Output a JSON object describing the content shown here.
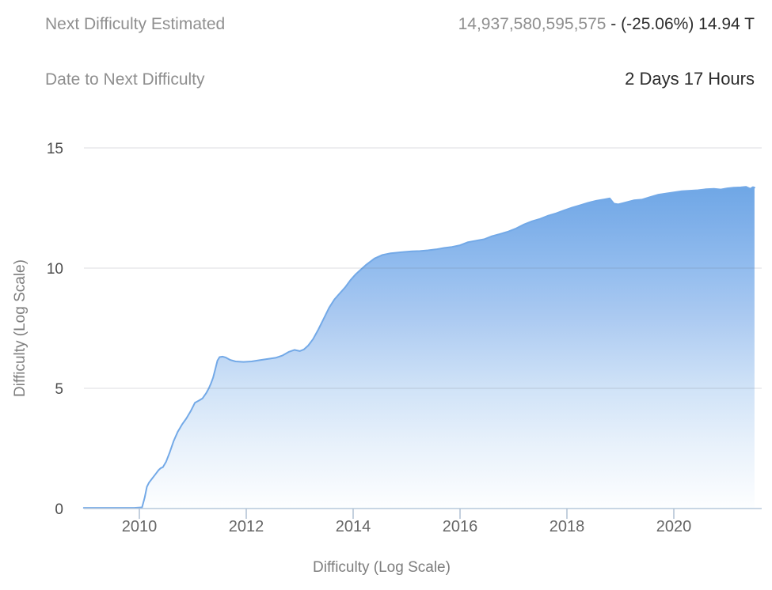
{
  "header": {
    "rows": [
      {
        "label": "Next Difficulty Estimated",
        "value_muted": "14,937,580,595,575",
        "value_strong": " - (-25.06%) 14.94 T"
      },
      {
        "label": "Date to Next Difficulty",
        "value": "2 Days 17 Hours"
      }
    ]
  },
  "chart_data": {
    "type": "area",
    "title": "",
    "xlabel": "Difficulty (Log Scale)",
    "ylabel": "Difficulty (Log Scale)",
    "ylim": [
      0,
      15
    ],
    "yticks": [
      0,
      5,
      10,
      15
    ],
    "xticks": [
      2010,
      2012,
      2014,
      2016,
      2018,
      2020
    ],
    "xlim": [
      2008.96,
      2021.51
    ],
    "grid": "horizontal",
    "legend": "none",
    "colors": {
      "line": "#73a9e7",
      "fill_top": "#6fa7e6",
      "fill_bottom": "#fdfeff",
      "grid": "rgba(95,103,115,0.22)",
      "axis_line": "#b7c9dc",
      "tick_mark": "#b0c0d2",
      "y_tick_label": "#4d4d4d",
      "x_tick_label": "#666666",
      "axis_title": "#7d7d7d"
    },
    "series": [
      {
        "name": "Difficulty (Log Scale)",
        "points": [
          [
            2008.96,
            0.03
          ],
          [
            2009.3,
            0.03
          ],
          [
            2009.6,
            0.03
          ],
          [
            2009.9,
            0.03
          ],
          [
            2010.05,
            0.05
          ],
          [
            2010.1,
            0.45
          ],
          [
            2010.14,
            0.9
          ],
          [
            2010.18,
            1.08
          ],
          [
            2010.24,
            1.25
          ],
          [
            2010.3,
            1.42
          ],
          [
            2010.36,
            1.6
          ],
          [
            2010.4,
            1.68
          ],
          [
            2010.44,
            1.72
          ],
          [
            2010.5,
            1.95
          ],
          [
            2010.57,
            2.35
          ],
          [
            2010.64,
            2.8
          ],
          [
            2010.72,
            3.2
          ],
          [
            2010.8,
            3.5
          ],
          [
            2010.88,
            3.75
          ],
          [
            2010.96,
            4.05
          ],
          [
            2011.04,
            4.4
          ],
          [
            2011.12,
            4.5
          ],
          [
            2011.18,
            4.58
          ],
          [
            2011.25,
            4.8
          ],
          [
            2011.3,
            5.0
          ],
          [
            2011.34,
            5.2
          ],
          [
            2011.38,
            5.45
          ],
          [
            2011.42,
            5.8
          ],
          [
            2011.46,
            6.15
          ],
          [
            2011.5,
            6.3
          ],
          [
            2011.56,
            6.32
          ],
          [
            2011.62,
            6.28
          ],
          [
            2011.7,
            6.18
          ],
          [
            2011.8,
            6.12
          ],
          [
            2011.95,
            6.1
          ],
          [
            2012.1,
            6.12
          ],
          [
            2012.25,
            6.17
          ],
          [
            2012.4,
            6.22
          ],
          [
            2012.55,
            6.27
          ],
          [
            2012.68,
            6.37
          ],
          [
            2012.8,
            6.52
          ],
          [
            2012.9,
            6.6
          ],
          [
            2013.0,
            6.55
          ],
          [
            2013.08,
            6.62
          ],
          [
            2013.16,
            6.78
          ],
          [
            2013.25,
            7.05
          ],
          [
            2013.35,
            7.45
          ],
          [
            2013.45,
            7.9
          ],
          [
            2013.55,
            8.35
          ],
          [
            2013.65,
            8.7
          ],
          [
            2013.75,
            8.95
          ],
          [
            2013.85,
            9.2
          ],
          [
            2013.95,
            9.5
          ],
          [
            2014.05,
            9.75
          ],
          [
            2014.15,
            9.95
          ],
          [
            2014.25,
            10.15
          ],
          [
            2014.4,
            10.4
          ],
          [
            2014.55,
            10.55
          ],
          [
            2014.7,
            10.62
          ],
          [
            2014.9,
            10.66
          ],
          [
            2015.1,
            10.7
          ],
          [
            2015.25,
            10.71
          ],
          [
            2015.4,
            10.74
          ],
          [
            2015.55,
            10.78
          ],
          [
            2015.7,
            10.84
          ],
          [
            2015.85,
            10.88
          ],
          [
            2016.0,
            10.95
          ],
          [
            2016.15,
            11.08
          ],
          [
            2016.3,
            11.14
          ],
          [
            2016.45,
            11.2
          ],
          [
            2016.6,
            11.33
          ],
          [
            2016.75,
            11.42
          ],
          [
            2016.9,
            11.52
          ],
          [
            2017.05,
            11.65
          ],
          [
            2017.2,
            11.82
          ],
          [
            2017.35,
            11.95
          ],
          [
            2017.5,
            12.05
          ],
          [
            2017.65,
            12.18
          ],
          [
            2017.8,
            12.28
          ],
          [
            2017.95,
            12.4
          ],
          [
            2018.1,
            12.52
          ],
          [
            2018.25,
            12.62
          ],
          [
            2018.4,
            12.72
          ],
          [
            2018.55,
            12.8
          ],
          [
            2018.7,
            12.86
          ],
          [
            2018.8,
            12.9
          ],
          [
            2018.88,
            12.68
          ],
          [
            2018.96,
            12.65
          ],
          [
            2019.05,
            12.7
          ],
          [
            2019.15,
            12.76
          ],
          [
            2019.25,
            12.82
          ],
          [
            2019.4,
            12.85
          ],
          [
            2019.55,
            12.95
          ],
          [
            2019.7,
            13.05
          ],
          [
            2019.85,
            13.1
          ],
          [
            2020.0,
            13.15
          ],
          [
            2020.15,
            13.2
          ],
          [
            2020.3,
            13.22
          ],
          [
            2020.45,
            13.24
          ],
          [
            2020.6,
            13.28
          ],
          [
            2020.75,
            13.3
          ],
          [
            2020.88,
            13.27
          ],
          [
            2021.0,
            13.32
          ],
          [
            2021.12,
            13.35
          ],
          [
            2021.25,
            13.36
          ],
          [
            2021.35,
            13.38
          ],
          [
            2021.43,
            13.3
          ],
          [
            2021.48,
            13.37
          ],
          [
            2021.51,
            13.35
          ]
        ]
      }
    ]
  }
}
